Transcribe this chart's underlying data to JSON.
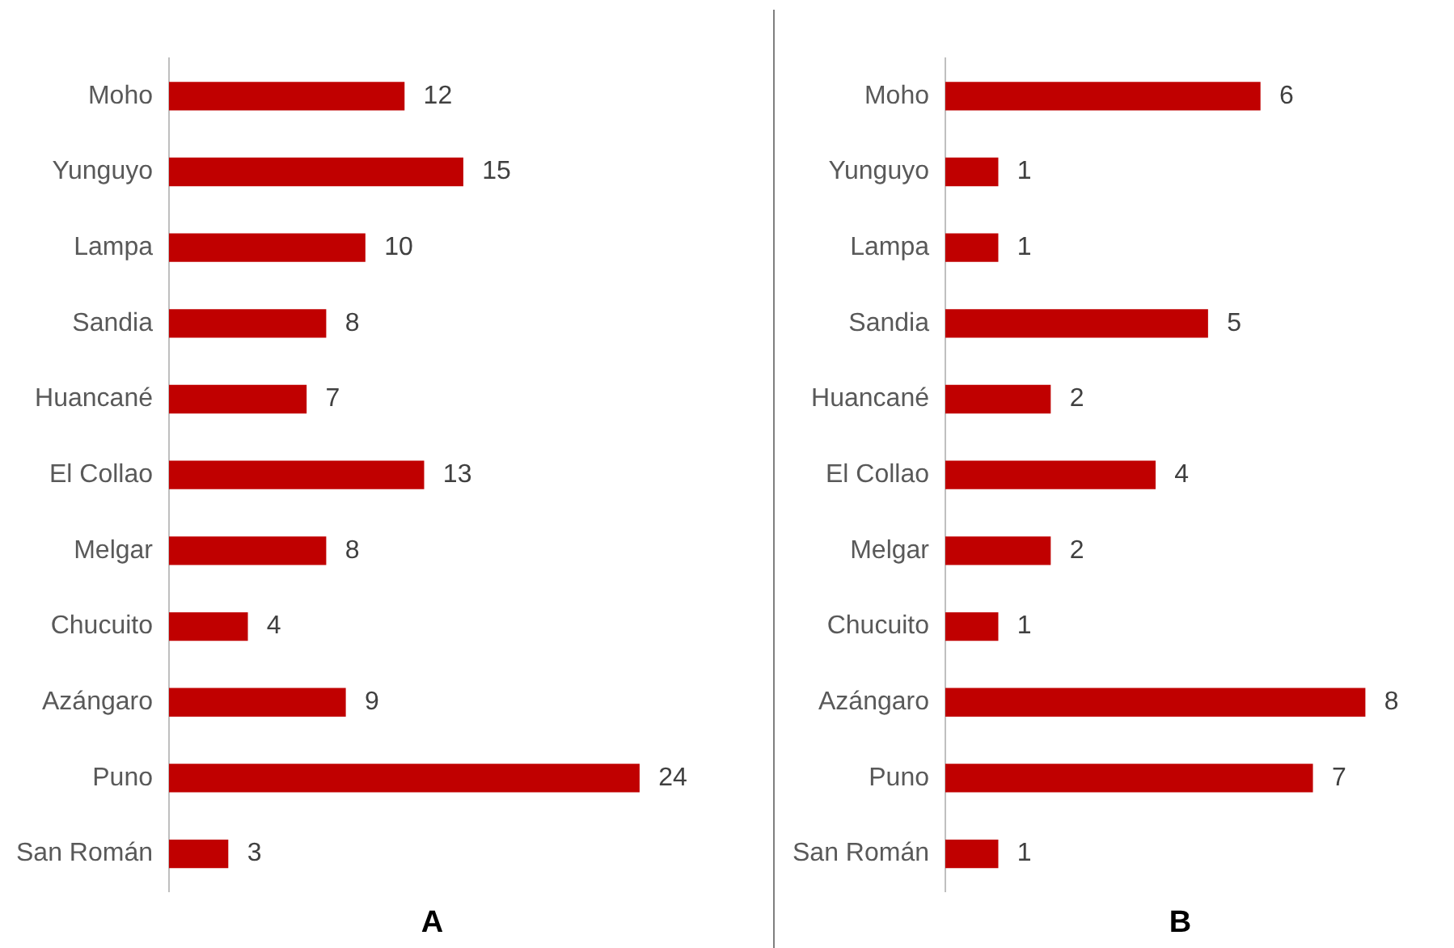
{
  "chart_data": [
    {
      "type": "bar",
      "orientation": "horizontal",
      "categories": [
        "Moho",
        "Yunguyo",
        "Lampa",
        "Sandia",
        "Huancané",
        "El Collao",
        "Melgar",
        "Chucuito",
        "Azángaro",
        "Puno",
        "San Román"
      ],
      "values": [
        12,
        15,
        10,
        8,
        7,
        13,
        8,
        4,
        9,
        24,
        3
      ],
      "color": "#c00000",
      "data_labels": true,
      "tick_labels": "y",
      "xlabel": "A"
    },
    {
      "type": "bar",
      "orientation": "horizontal",
      "categories": [
        "Moho",
        "Yunguyo",
        "Lampa",
        "Sandia",
        "Huancané",
        "El Collao",
        "Melgar",
        "Chucuito",
        "Azángaro",
        "Puno",
        "San Román"
      ],
      "values": [
        6,
        1,
        1,
        5,
        2,
        4,
        2,
        1,
        8,
        7,
        1
      ],
      "color": "#c00000",
      "data_labels": true,
      "tick_labels": "y",
      "xlabel": "B"
    }
  ]
}
